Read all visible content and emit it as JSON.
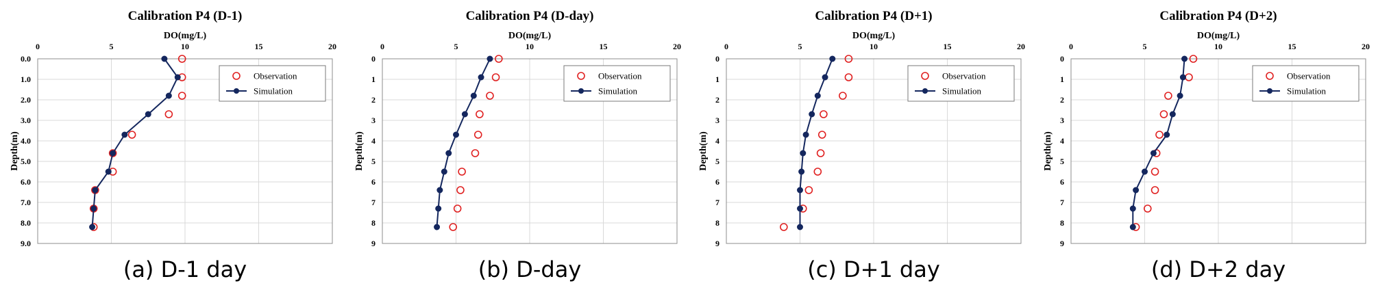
{
  "panels": [
    {
      "caption": "(a) D-1 day",
      "chart_data": {
        "type": "line",
        "title": "Calibration P4 (D-1)",
        "xlabel": "DO(mg/L)",
        "ylabel": "Depth(m)",
        "xlim": [
          0,
          20
        ],
        "ylim": [
          9,
          0
        ],
        "x_ticks": [
          "0",
          "5",
          "10",
          "15",
          "20"
        ],
        "y_ticks": [
          "0.0",
          "1.0",
          "2.0",
          "3.0",
          "4.0",
          "5.0",
          "6.0",
          "7.0",
          "8.0",
          "9.0"
        ],
        "grid": true,
        "legend_position": "top-right",
        "series": [
          {
            "name": "Observation",
            "marker": "open-circle",
            "color": "#e02020",
            "points": [
              [
                9.8,
                0.0
              ],
              [
                9.8,
                0.9
              ],
              [
                9.8,
                1.8
              ],
              [
                8.9,
                2.7
              ],
              [
                6.4,
                3.7
              ],
              [
                5.1,
                4.6
              ],
              [
                5.1,
                5.5
              ],
              [
                3.9,
                6.4
              ],
              [
                3.8,
                7.3
              ],
              [
                3.8,
                8.2
              ]
            ]
          },
          {
            "name": "Simulation",
            "marker": "filled-circle-line",
            "color": "#14275e",
            "points": [
              [
                8.6,
                0.0
              ],
              [
                9.5,
                0.9
              ],
              [
                8.9,
                1.8
              ],
              [
                7.5,
                2.7
              ],
              [
                5.9,
                3.7
              ],
              [
                5.1,
                4.6
              ],
              [
                4.8,
                5.5
              ],
              [
                3.9,
                6.4
              ],
              [
                3.8,
                7.3
              ],
              [
                3.7,
                8.2
              ]
            ]
          }
        ]
      }
    },
    {
      "caption": "(b) D-day",
      "chart_data": {
        "type": "line",
        "title": "Calibration P4 (D-day)",
        "xlabel": "DO(mg/L)",
        "ylabel": "Depth(m)",
        "xlim": [
          0,
          20
        ],
        "ylim": [
          9,
          0
        ],
        "x_ticks": [
          "0",
          "5",
          "10",
          "15",
          "20"
        ],
        "y_ticks": [
          "0",
          "1",
          "2",
          "3",
          "4",
          "5",
          "6",
          "7",
          "8",
          "9"
        ],
        "grid": true,
        "legend_position": "top-right",
        "series": [
          {
            "name": "Observation",
            "marker": "open-circle",
            "color": "#e02020",
            "points": [
              [
                7.9,
                0.0
              ],
              [
                7.7,
                0.9
              ],
              [
                7.3,
                1.8
              ],
              [
                6.6,
                2.7
              ],
              [
                6.5,
                3.7
              ],
              [
                6.3,
                4.6
              ],
              [
                5.4,
                5.5
              ],
              [
                5.3,
                6.4
              ],
              [
                5.1,
                7.3
              ],
              [
                4.8,
                8.2
              ]
            ]
          },
          {
            "name": "Simulation",
            "marker": "filled-circle-line",
            "color": "#14275e",
            "points": [
              [
                7.3,
                0.0
              ],
              [
                6.7,
                0.9
              ],
              [
                6.2,
                1.8
              ],
              [
                5.6,
                2.7
              ],
              [
                5.0,
                3.7
              ],
              [
                4.5,
                4.6
              ],
              [
                4.2,
                5.5
              ],
              [
                3.9,
                6.4
              ],
              [
                3.8,
                7.3
              ],
              [
                3.7,
                8.2
              ]
            ]
          }
        ]
      }
    },
    {
      "caption": "(c) D+1 day",
      "chart_data": {
        "type": "line",
        "title": "Calibration P4 (D+1)",
        "xlabel": "DO(mg/L)",
        "ylabel": "Depth(m)",
        "xlim": [
          0,
          20
        ],
        "ylim": [
          9,
          0
        ],
        "x_ticks": [
          "0",
          "5",
          "10",
          "15",
          "20"
        ],
        "y_ticks": [
          "0",
          "1",
          "2",
          "3",
          "4",
          "5",
          "6",
          "7",
          "8",
          "9"
        ],
        "grid": true,
        "legend_position": "top-right",
        "series": [
          {
            "name": "Observation",
            "marker": "open-circle",
            "color": "#e02020",
            "points": [
              [
                8.3,
                0.0
              ],
              [
                8.3,
                0.9
              ],
              [
                7.9,
                1.8
              ],
              [
                6.6,
                2.7
              ],
              [
                6.5,
                3.7
              ],
              [
                6.4,
                4.6
              ],
              [
                6.2,
                5.5
              ],
              [
                5.6,
                6.4
              ],
              [
                5.2,
                7.3
              ],
              [
                3.9,
                8.2
              ]
            ]
          },
          {
            "name": "Simulation",
            "marker": "filled-circle-line",
            "color": "#14275e",
            "points": [
              [
                7.2,
                0.0
              ],
              [
                6.7,
                0.9
              ],
              [
                6.2,
                1.8
              ],
              [
                5.8,
                2.7
              ],
              [
                5.4,
                3.7
              ],
              [
                5.2,
                4.6
              ],
              [
                5.1,
                5.5
              ],
              [
                5.0,
                6.4
              ],
              [
                5.0,
                7.3
              ],
              [
                5.0,
                8.2
              ]
            ]
          }
        ]
      }
    },
    {
      "caption": "(d) D+2 day",
      "chart_data": {
        "type": "line",
        "title": "Calibration P4 (D+2)",
        "xlabel": "DO(mg/L)",
        "ylabel": "Depth(m)",
        "xlim": [
          0,
          20
        ],
        "ylim": [
          9,
          0
        ],
        "x_ticks": [
          "0",
          "5",
          "10",
          "15",
          "20"
        ],
        "y_ticks": [
          "0",
          "1",
          "2",
          "3",
          "4",
          "5",
          "6",
          "7",
          "8",
          "9"
        ],
        "grid": true,
        "legend_position": "top-right",
        "series": [
          {
            "name": "Observation",
            "marker": "open-circle",
            "color": "#e02020",
            "points": [
              [
                8.3,
                0.0
              ],
              [
                8.0,
                0.9
              ],
              [
                6.6,
                1.8
              ],
              [
                6.3,
                2.7
              ],
              [
                6.0,
                3.7
              ],
              [
                5.8,
                4.6
              ],
              [
                5.7,
                5.5
              ],
              [
                5.7,
                6.4
              ],
              [
                5.2,
                7.3
              ],
              [
                4.4,
                8.2
              ]
            ]
          },
          {
            "name": "Simulation",
            "marker": "filled-circle-line",
            "color": "#14275e",
            "points": [
              [
                7.7,
                0.0
              ],
              [
                7.6,
                0.9
              ],
              [
                7.4,
                1.8
              ],
              [
                6.9,
                2.7
              ],
              [
                6.5,
                3.7
              ],
              [
                5.6,
                4.6
              ],
              [
                5.0,
                5.5
              ],
              [
                4.4,
                6.4
              ],
              [
                4.2,
                7.3
              ],
              [
                4.2,
                8.2
              ]
            ]
          }
        ]
      }
    }
  ]
}
